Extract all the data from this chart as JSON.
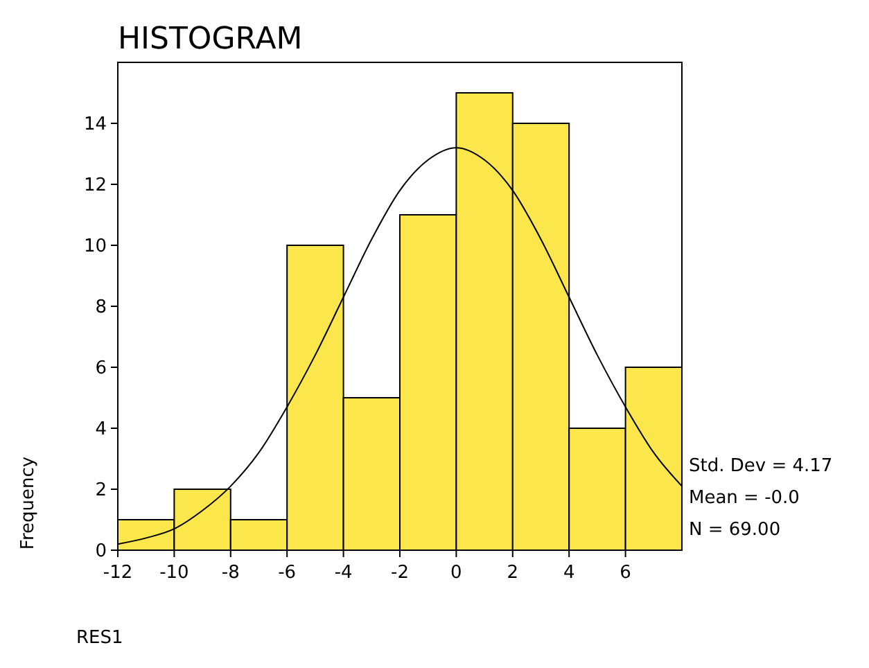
{
  "chart_data": {
    "type": "histogram",
    "title": "HISTOGRAM",
    "xlabel": "RES1",
    "ylabel": "Frequency",
    "bins": [
      -12,
      -10,
      -8,
      -6,
      -4,
      -2,
      0,
      2,
      4,
      6,
      8
    ],
    "values": [
      1,
      2,
      1,
      10,
      5,
      11,
      15,
      14,
      4,
      6
    ],
    "color": "#fbe74b",
    "series": [
      {
        "type": "line",
        "color": "#000000",
        "x": [
          -12,
          -11,
          -10,
          -9,
          -8,
          -7,
          -6,
          -5,
          -4,
          -3,
          -2,
          -1,
          0,
          1,
          2,
          3,
          4,
          5,
          6,
          7,
          8
        ],
        "values": [
          0.2,
          0.4,
          0.7,
          1.3,
          2.1,
          3.2,
          4.7,
          6.4,
          8.3,
          10.2,
          11.8,
          12.8,
          13.2,
          12.8,
          11.8,
          10.2,
          8.3,
          6.4,
          4.7,
          3.2,
          2.1
        ]
      }
    ],
    "xlim": [
      -12,
      8
    ],
    "xticks": [
      -12,
      -10,
      -8,
      -6,
      -4,
      -2,
      0,
      2,
      4,
      6
    ],
    "ylim": [
      0,
      16
    ],
    "yticks": [
      0,
      2,
      4,
      6,
      8,
      10,
      12,
      14
    ],
    "annotations": [
      "Std. Dev = 4.17",
      "Mean = -0.0",
      "N = 69.00"
    ]
  }
}
